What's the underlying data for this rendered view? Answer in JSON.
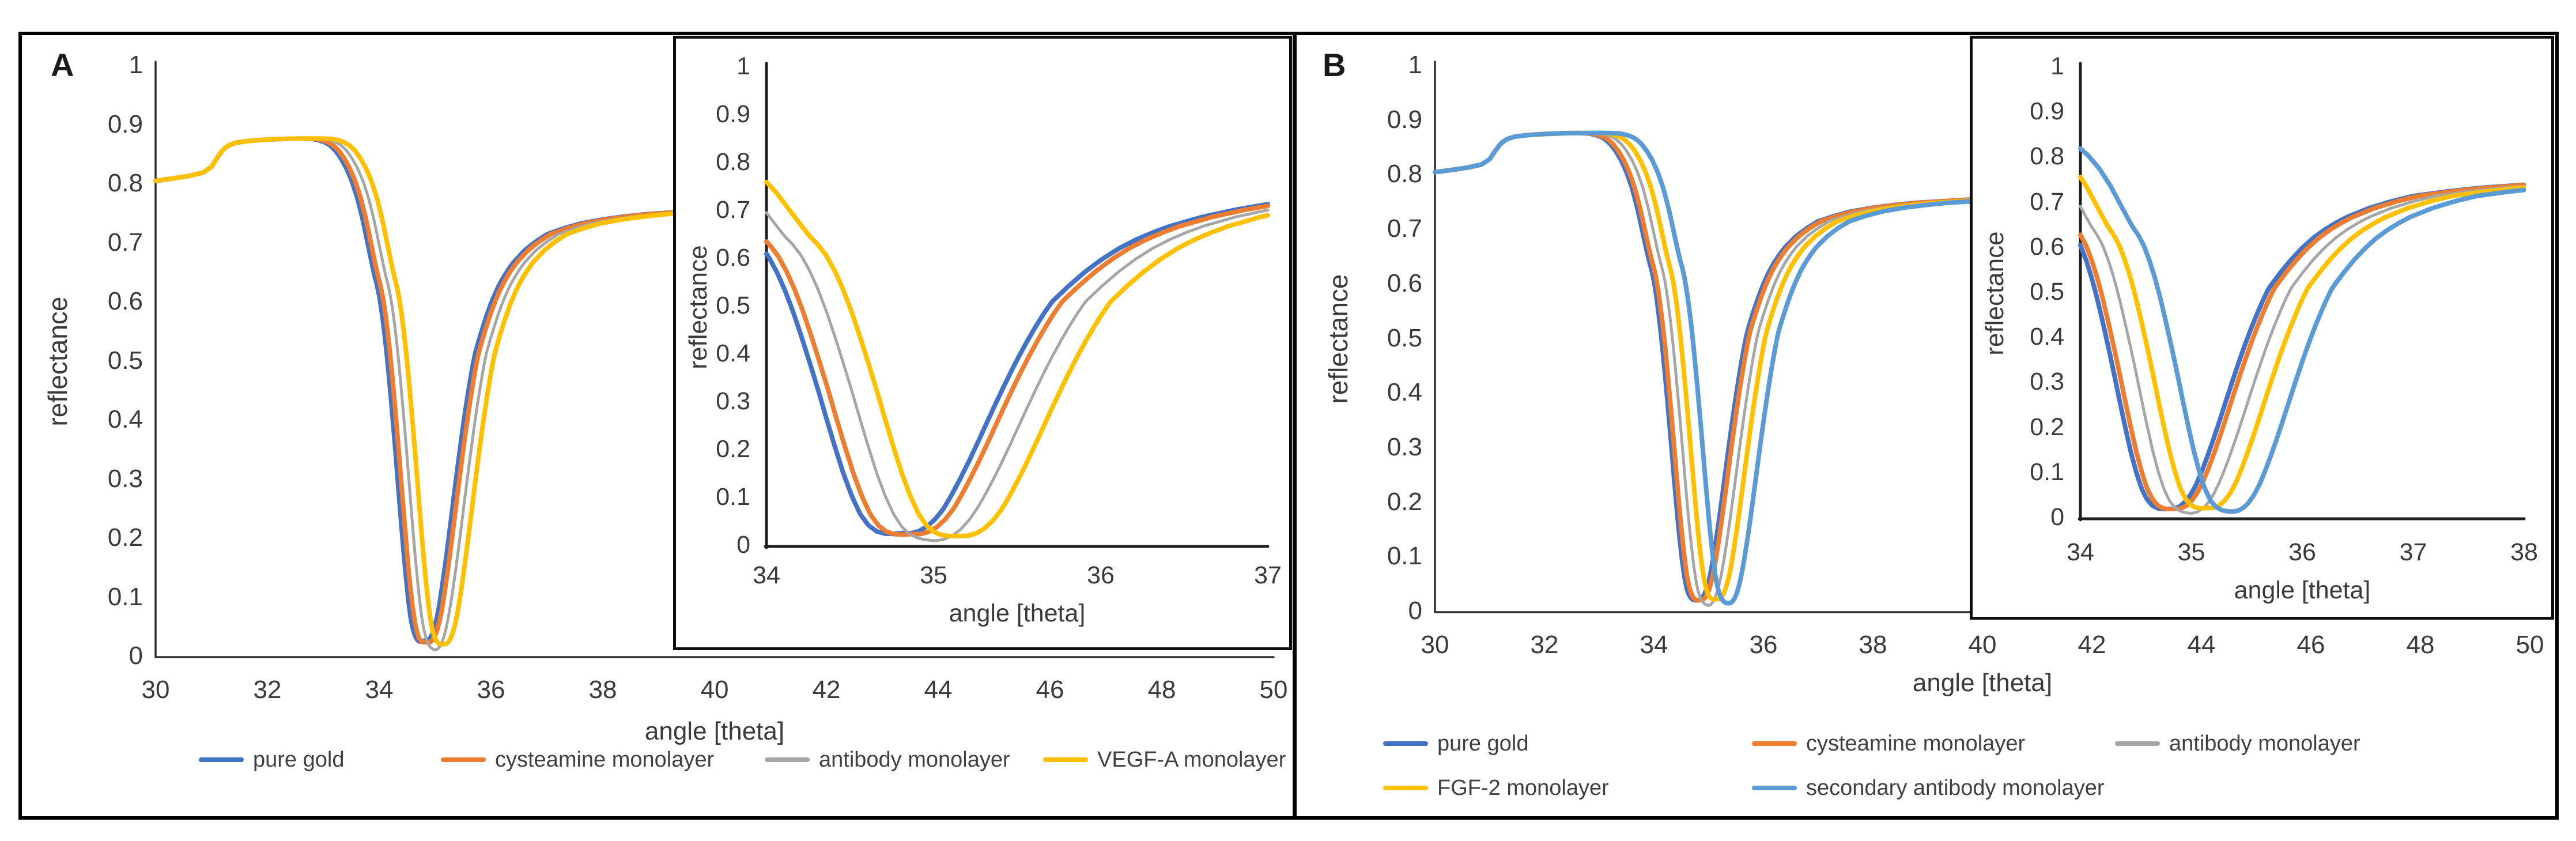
{
  "figure": {
    "background": "#ffffff",
    "border_color": "#000000",
    "text_color": "#3a3a3a",
    "axis_color": "#2e2e2e"
  },
  "spr_curve_model": {
    "note": "reflectance(angle) = min(background(angle), dip(angle - dip_angle)); near the minimum each curve is offset by a small tent function so its lowest point equals dip_min",
    "background_points": [
      [
        30,
        0.806
      ],
      [
        30.3,
        0.81
      ],
      [
        30.6,
        0.8145
      ],
      [
        30.85,
        0.82
      ],
      [
        31.0,
        0.83
      ],
      [
        31.1,
        0.845
      ],
      [
        31.2,
        0.858
      ],
      [
        31.3,
        0.866
      ],
      [
        31.45,
        0.871
      ],
      [
        31.7,
        0.874
      ],
      [
        32.0,
        0.876
      ],
      [
        32.4,
        0.8775
      ],
      [
        33.0,
        0.878
      ],
      [
        50,
        0.878
      ]
    ],
    "dip_points": [
      [
        -2.6,
        0.8785
      ],
      [
        -2.3,
        0.878
      ],
      [
        -2.0,
        0.877
      ],
      [
        -1.9,
        0.875
      ],
      [
        -1.8,
        0.872
      ],
      [
        -1.7,
        0.867
      ],
      [
        -1.6,
        0.858
      ],
      [
        -1.5,
        0.845
      ],
      [
        -1.4,
        0.828
      ],
      [
        -1.3,
        0.806
      ],
      [
        -1.2,
        0.777
      ],
      [
        -1.1,
        0.739
      ],
      [
        -1.0,
        0.693
      ],
      [
        -0.95,
        0.67
      ],
      [
        -0.9,
        0.648
      ],
      [
        -0.85,
        0.63
      ],
      [
        -0.8,
        0.607
      ],
      [
        -0.75,
        0.575
      ],
      [
        -0.7,
        0.536
      ],
      [
        -0.65,
        0.49
      ],
      [
        -0.6,
        0.438
      ],
      [
        -0.55,
        0.383
      ],
      [
        -0.5,
        0.326
      ],
      [
        -0.45,
        0.266
      ],
      [
        -0.4,
        0.208
      ],
      [
        -0.35,
        0.153
      ],
      [
        -0.3,
        0.106
      ],
      [
        -0.25,
        0.068
      ],
      [
        -0.2,
        0.042
      ],
      [
        -0.15,
        0.027
      ],
      [
        -0.1,
        0.02
      ],
      [
        -0.05,
        0.0175
      ],
      [
        0,
        0.017
      ],
      [
        0.05,
        0.0185
      ],
      [
        0.1,
        0.025
      ],
      [
        0.15,
        0.037
      ],
      [
        0.2,
        0.055
      ],
      [
        0.25,
        0.079
      ],
      [
        0.3,
        0.109
      ],
      [
        0.35,
        0.142
      ],
      [
        0.4,
        0.177
      ],
      [
        0.45,
        0.214
      ],
      [
        0.5,
        0.252
      ],
      [
        0.55,
        0.29
      ],
      [
        0.6,
        0.327
      ],
      [
        0.65,
        0.363
      ],
      [
        0.7,
        0.397
      ],
      [
        0.75,
        0.429
      ],
      [
        0.8,
        0.459
      ],
      [
        0.85,
        0.487
      ],
      [
        0.9,
        0.512
      ],
      [
        1.0,
        0.545
      ],
      [
        1.1,
        0.575
      ],
      [
        1.2,
        0.601
      ],
      [
        1.3,
        0.623
      ],
      [
        1.4,
        0.641
      ],
      [
        1.5,
        0.656
      ],
      [
        1.6,
        0.669
      ],
      [
        1.8,
        0.689
      ],
      [
        2.0,
        0.704
      ],
      [
        2.2,
        0.716
      ],
      [
        2.5,
        0.726
      ],
      [
        2.8,
        0.734
      ],
      [
        3.2,
        0.741
      ],
      [
        3.6,
        0.746
      ],
      [
        4.0,
        0.75
      ],
      [
        4.5,
        0.753
      ],
      [
        5.0,
        0.756
      ],
      [
        6.0,
        0.76
      ],
      [
        7.0,
        0.763
      ],
      [
        8.0,
        0.765
      ],
      [
        10.0,
        0.768
      ],
      [
        12.0,
        0.77
      ],
      [
        16.0,
        0.772
      ]
    ]
  },
  "chart_data": [
    {
      "panel": "A",
      "type": "line",
      "title": "A",
      "xlabel": "angle [theta]",
      "ylabel": "reflectance",
      "xlim": [
        30,
        50
      ],
      "ylim": [
        0,
        1
      ],
      "xticks": [
        30,
        32,
        34,
        36,
        38,
        40,
        42,
        44,
        46,
        48,
        50
      ],
      "yticks": [
        0,
        0.1,
        0.2,
        0.3,
        0.4,
        0.5,
        0.6,
        0.7,
        0.8,
        0.9,
        1
      ],
      "grid": false,
      "legend_position": "bottom",
      "series": [
        {
          "name": "pure gold",
          "color": "#4472C4",
          "dip_angle": 34.81,
          "dip_min": 0.028,
          "line_width": 8
        },
        {
          "name": "cysteamine monolayer",
          "color": "#ED7D31",
          "dip_angle": 34.87,
          "dip_min": 0.026,
          "line_width": 8
        },
        {
          "name": "antibody monolayer",
          "color": "#A6A6A6",
          "dip_angle": 35.01,
          "dip_min": 0.012,
          "line_width": 5
        },
        {
          "name": "VEGF-A monolayer",
          "color": "#FFC000",
          "dip_angle": 35.16,
          "dip_min": 0.022,
          "line_width": 8
        }
      ],
      "inset": {
        "xlabel": "angle [theta]",
        "ylabel": "reflectance",
        "xlim": [
          34,
          37
        ],
        "ylim": [
          0,
          1
        ],
        "xticks": [
          34,
          35,
          36,
          37
        ],
        "yticks": [
          0,
          0.1,
          0.2,
          0.3,
          0.4,
          0.5,
          0.6,
          0.7,
          0.8,
          0.9,
          1
        ]
      }
    },
    {
      "panel": "B",
      "type": "line",
      "title": "B",
      "xlabel": "angle [theta]",
      "ylabel": "reflectance",
      "xlim": [
        30,
        50
      ],
      "ylim": [
        0,
        1
      ],
      "xticks": [
        30,
        32,
        34,
        36,
        38,
        40,
        42,
        44,
        46,
        48,
        50
      ],
      "yticks": [
        0,
        0.1,
        0.2,
        0.3,
        0.4,
        0.5,
        0.6,
        0.7,
        0.8,
        0.9,
        1
      ],
      "grid": false,
      "legend_position": "bottom",
      "series": [
        {
          "name": "pure gold",
          "color": "#4472C4",
          "dip_angle": 34.8,
          "dip_min": 0.022,
          "line_width": 8
        },
        {
          "name": "cysteamine monolayer",
          "color": "#ED7D31",
          "dip_angle": 34.85,
          "dip_min": 0.022,
          "line_width": 8
        },
        {
          "name": "antibody monolayer",
          "color": "#A6A6A6",
          "dip_angle": 35.0,
          "dip_min": 0.012,
          "line_width": 5
        },
        {
          "name": "FGF-2 monolayer",
          "color": "#FFC000",
          "dip_angle": 35.15,
          "dip_min": 0.024,
          "line_width": 8
        },
        {
          "name": "secondary antibody monolayer",
          "color": "#5B9BD5",
          "dip_angle": 35.37,
          "dip_min": 0.016,
          "line_width": 8
        }
      ],
      "inset": {
        "xlabel": "angle [theta]",
        "ylabel": "reflectance",
        "xlim": [
          34,
          38
        ],
        "ylim": [
          0,
          1
        ],
        "xticks": [
          34,
          35,
          36,
          37,
          38
        ],
        "yticks": [
          0,
          0.1,
          0.2,
          0.3,
          0.4,
          0.5,
          0.6,
          0.7,
          0.8,
          0.9,
          1
        ]
      }
    }
  ]
}
